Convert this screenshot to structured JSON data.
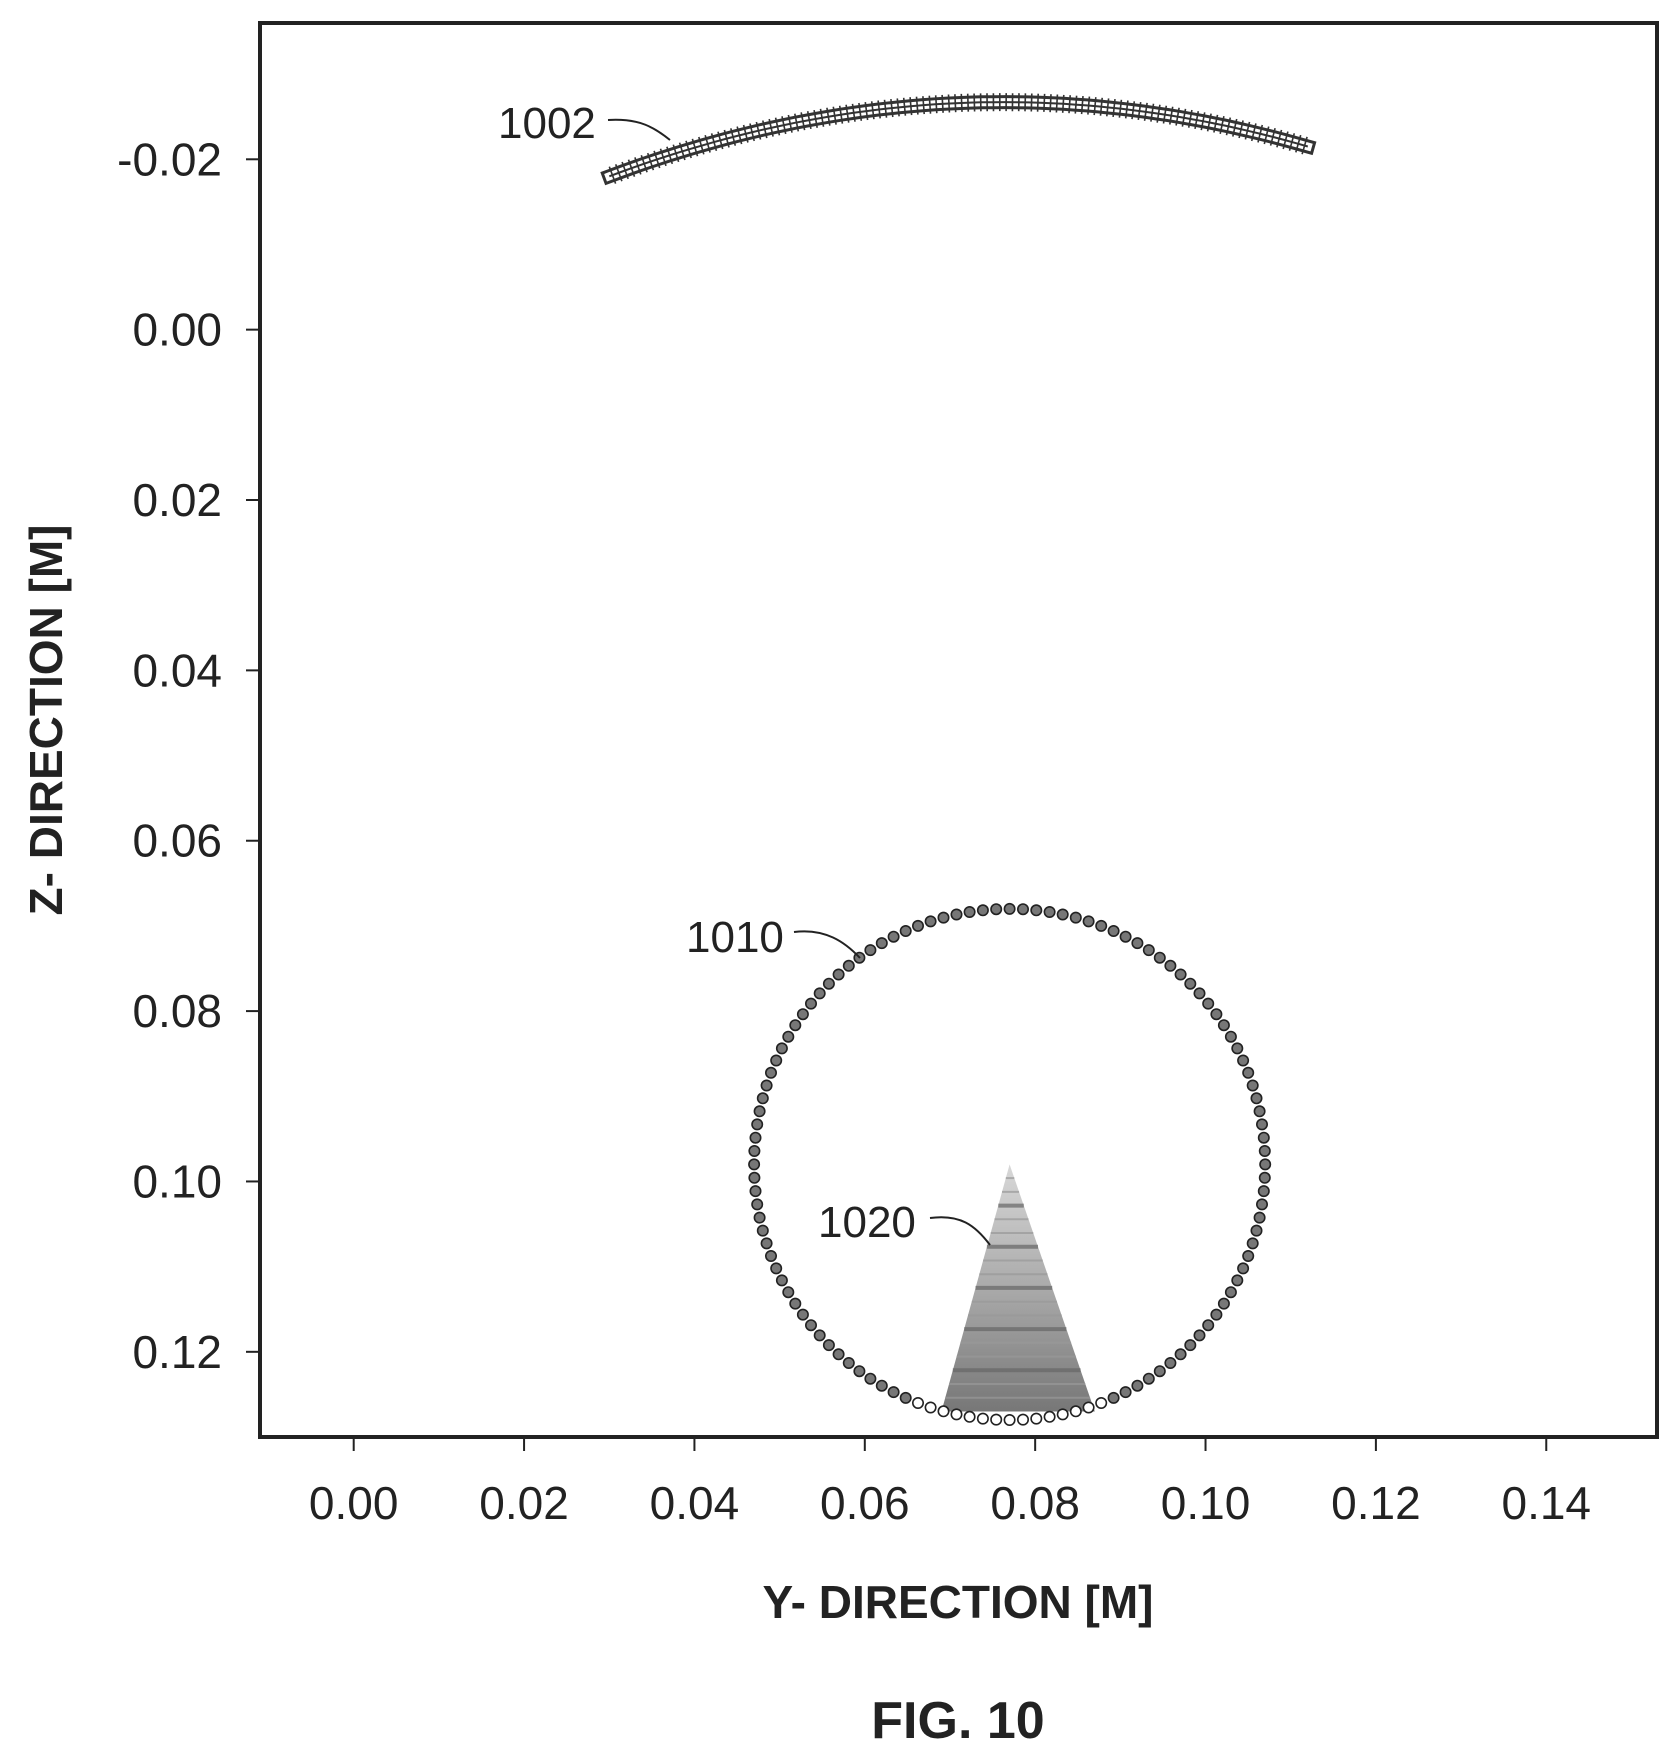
{
  "chart_data": {
    "type": "scatter",
    "caption": "FIG. 10",
    "xlabel": "Y- DIRECTION [M]",
    "ylabel": "Z- DIRECTION [M]",
    "xlim": [
      -0.011,
      0.153
    ],
    "ylim": [
      -0.036,
      0.13
    ],
    "y_inverted": true,
    "grid": false,
    "xticks": [
      0.0,
      0.02,
      0.04,
      0.06,
      0.08,
      0.1,
      0.12,
      0.14
    ],
    "xtick_labels": [
      "0.00",
      "0.02",
      "0.04",
      "0.06",
      "0.08",
      "0.10",
      "0.12",
      "0.14"
    ],
    "yticks": [
      -0.02,
      0.0,
      0.02,
      0.04,
      0.06,
      0.08,
      0.1,
      0.12
    ],
    "ytick_labels": [
      "-0.02",
      "0.00",
      "0.02",
      "0.04",
      "0.06",
      "0.08",
      "0.10",
      "0.12"
    ],
    "elements": [
      {
        "ref": "1002",
        "shape": "arc-array",
        "y_start": 0.03,
        "y_end": 0.112,
        "z_start": -0.018,
        "z_apex": -0.0267,
        "z_end": -0.0215,
        "apex_y": 0.078
      },
      {
        "ref": "1010",
        "shape": "ring-of-points",
        "center": [
          0.077,
          0.098
        ],
        "radius": 0.03,
        "point_count": 120
      },
      {
        "ref": "1020",
        "shape": "wedge",
        "apex": [
          0.077,
          0.098
        ],
        "base_left": [
          0.069,
          0.127
        ],
        "base_right": [
          0.087,
          0.127
        ]
      }
    ]
  }
}
